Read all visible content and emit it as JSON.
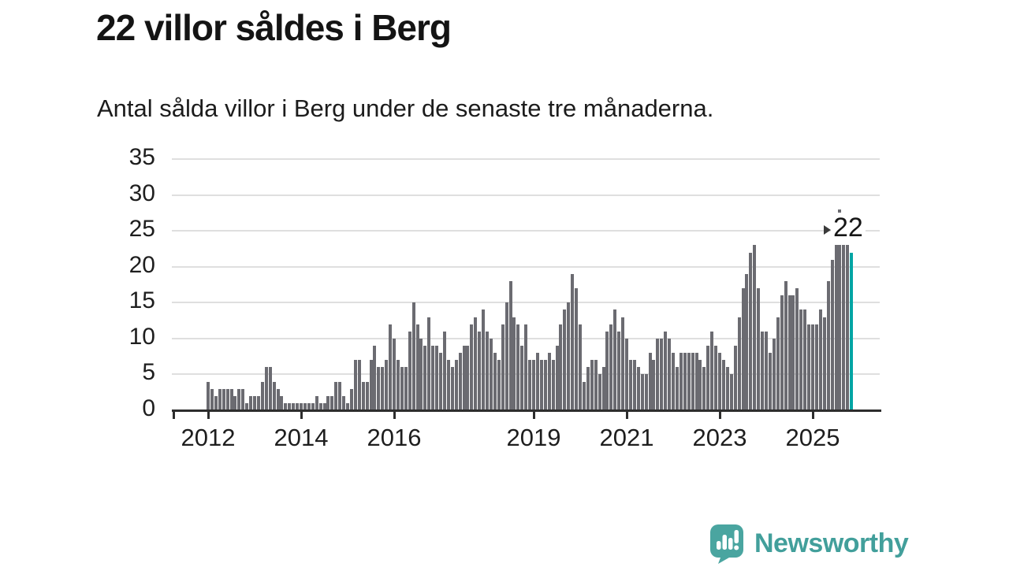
{
  "title": "22 villor såldes i Berg",
  "subtitle": "Antal sålda villor i Berg under de senaste tre månaderna.",
  "annotation": {
    "label": "22"
  },
  "branding": {
    "name": "Newsworthy",
    "icon": "newsworthy-speech-bubble-bar-chart"
  },
  "colors": {
    "bar": "#6b6b71",
    "highlight": "#00a5a4",
    "grid": "#dfdfdf",
    "axis": "#2d2d2d",
    "text": "#1e1e1e",
    "brand": "#429f9b",
    "background": "#ffffff"
  },
  "chart_data": {
    "type": "bar",
    "title": "22 villor såldes i Berg",
    "subtitle": "Antal sålda villor i Berg under de senaste tre månaderna.",
    "frequency": "monthly",
    "x_start": "2012-01",
    "x_end": "2025-11",
    "xlabel": "",
    "ylabel": "",
    "ylim": [
      0,
      35
    ],
    "grid": true,
    "y_ticks": [
      0,
      5,
      10,
      15,
      20,
      25,
      30,
      35
    ],
    "x_ticks": [
      {
        "label": "2012",
        "month_index": 0
      },
      {
        "label": "2014",
        "month_index": 24
      },
      {
        "label": "2016",
        "month_index": 48
      },
      {
        "label": "2019",
        "month_index": 84
      },
      {
        "label": "2021",
        "month_index": 108
      },
      {
        "label": "2023",
        "month_index": 132
      },
      {
        "label": "2025",
        "month_index": 156
      }
    ],
    "highlight_last_bar": true,
    "last_value": 22,
    "values": [
      4,
      3,
      2,
      3,
      3,
      3,
      3,
      2,
      3,
      3,
      1,
      2,
      2,
      2,
      4,
      6,
      6,
      4,
      3,
      2,
      1,
      1,
      1,
      1,
      1,
      1,
      1,
      1,
      2,
      1,
      1,
      2,
      2,
      4,
      4,
      2,
      1,
      3,
      7,
      7,
      4,
      4,
      7,
      9,
      6,
      6,
      7,
      12,
      10,
      7,
      6,
      6,
      11,
      15,
      12,
      10,
      9,
      13,
      9,
      9,
      8,
      11,
      7,
      6,
      7,
      8,
      9,
      9,
      12,
      13,
      11,
      14,
      11,
      10,
      8,
      7,
      12,
      15,
      18,
      13,
      12,
      9,
      12,
      7,
      7,
      8,
      7,
      7,
      8,
      7,
      9,
      12,
      14,
      15,
      19,
      17,
      12,
      4,
      6,
      7,
      7,
      5,
      6,
      11,
      12,
      14,
      11,
      13,
      10,
      7,
      7,
      6,
      5,
      5,
      8,
      7,
      10,
      10,
      11,
      10,
      8,
      6,
      8,
      8,
      8,
      8,
      8,
      7,
      6,
      9,
      11,
      9,
      8,
      7,
      6,
      5,
      9,
      13,
      17,
      19,
      22,
      23,
      17,
      11,
      11,
      8,
      10,
      13,
      16,
      18,
      16,
      16,
      17,
      14,
      14,
      12,
      12,
      12,
      14,
      13,
      18,
      21,
      23,
      28,
      23,
      23,
      22
    ]
  }
}
